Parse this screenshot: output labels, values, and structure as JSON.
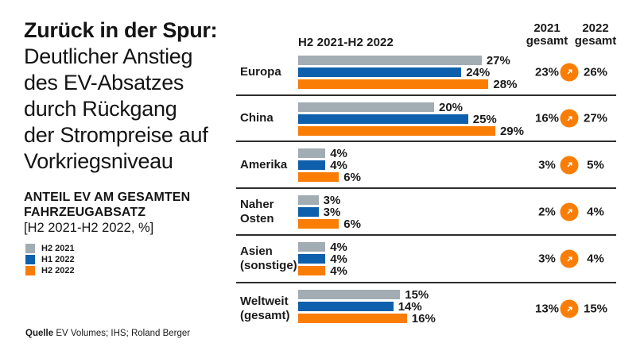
{
  "title": {
    "bold_line": "Zurück in der Spur:",
    "rest_lines": "Deutlicher Anstieg\ndes EV-Absatzes\ndurch Rückgang\nder Strompreise auf\nVorkriegsniveau"
  },
  "subtitle": {
    "line1": "ANTEIL EV AM GESAMTEN",
    "line2": "FAHRZEUGABSATZ",
    "line3": "[H2 2021-H2 2022, %]"
  },
  "legend": {
    "items": [
      {
        "label": "H2 2021",
        "color": "#A2ACB3"
      },
      {
        "label": "H1 2022",
        "color": "#0E60AC"
      },
      {
        "label": "H2 2022",
        "color": "#FA7D05"
      }
    ]
  },
  "source": {
    "label_bold": "Quelle",
    "text": "EV Volumes; IHS; Roland Berger"
  },
  "chart": {
    "period_header": "H2 2021-H2 2022",
    "col_2021": {
      "line1": "2021",
      "line2": "gesamt"
    },
    "col_2022": {
      "line1": "2022",
      "line2": "gesamt"
    },
    "accent_orange": "#FA7D05",
    "separator_color": "#2d2d2d"
  },
  "chart_data": {
    "type": "bar",
    "orientation": "horizontal",
    "unit": "%",
    "title": "Anteil EV am gesamten Fahrzeugabsatz [H2 2021-H2 2022, %]",
    "categories": [
      "Europa",
      "China",
      "Amerika",
      "Naher Osten",
      "Asien (sonstige)",
      "Weltweit (gesamt)"
    ],
    "category_label_lines": [
      [
        "Europa"
      ],
      [
        "China"
      ],
      [
        "Amerika"
      ],
      [
        "Naher",
        "Osten"
      ],
      [
        "Asien",
        "(sonstige)"
      ],
      [
        "Weltweit",
        "(gesamt)"
      ]
    ],
    "series": [
      {
        "name": "H2 2021",
        "color": "#A2ACB3",
        "values": [
          27,
          20,
          4,
          3,
          4,
          15
        ]
      },
      {
        "name": "H1 2022",
        "color": "#0E60AC",
        "values": [
          24,
          25,
          4,
          3,
          4,
          14
        ]
      },
      {
        "name": "H2 2022",
        "color": "#FA7D05",
        "values": [
          28,
          29,
          6,
          6,
          4,
          16
        ]
      }
    ],
    "total_2021": [
      23,
      16,
      3,
      2,
      3,
      13
    ],
    "total_2022": [
      26,
      27,
      5,
      4,
      4,
      15
    ],
    "value_suffix": "%",
    "xlim": [
      0,
      30
    ],
    "grid": false,
    "legend_position": "left"
  }
}
